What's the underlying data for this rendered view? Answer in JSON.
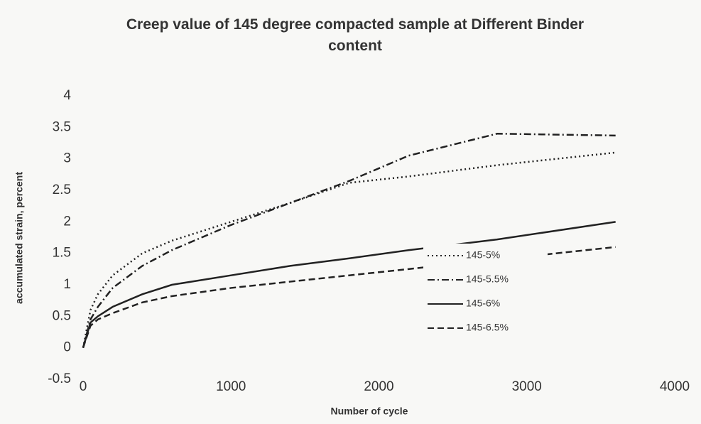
{
  "chart_data": {
    "type": "line",
    "title": "Creep value of 145 degree compacted sample at Different Binder content",
    "x_label": "Number of cycle",
    "y_label": "accumulated strain, percent",
    "x": [
      0,
      50,
      100,
      200,
      400,
      600,
      1000,
      1400,
      1800,
      2200,
      2800,
      3600
    ],
    "series": [
      {
        "name": "145-5%",
        "color": "#222222",
        "dash": "dotted",
        "values": [
          0,
          0.6,
          0.85,
          1.15,
          1.5,
          1.7,
          2.0,
          2.3,
          2.62,
          2.72,
          2.9,
          3.1
        ]
      },
      {
        "name": "145-5.5%",
        "color": "#222222",
        "dash": "dashdot",
        "values": [
          0,
          0.45,
          0.65,
          0.95,
          1.3,
          1.55,
          1.95,
          2.3,
          2.65,
          3.05,
          3.4,
          3.37
        ]
      },
      {
        "name": "145-6%",
        "color": "#222222",
        "dash": "solid",
        "values": [
          0,
          0.4,
          0.5,
          0.65,
          0.85,
          1.0,
          1.15,
          1.3,
          1.42,
          1.55,
          1.72,
          2.0
        ]
      },
      {
        "name": "145-6.5%",
        "color": "#222222",
        "dash": "dashed",
        "values": [
          0,
          0.35,
          0.45,
          0.55,
          0.72,
          0.82,
          0.95,
          1.05,
          1.15,
          1.25,
          1.4,
          1.6
        ]
      }
    ],
    "xlim": [
      0,
      4000
    ],
    "xticks": [
      0,
      1000,
      2000,
      3000,
      4000
    ],
    "ylim": [
      -0.5,
      4
    ],
    "yticks": [
      -0.5,
      0,
      0.5,
      1,
      1.5,
      2,
      2.5,
      3,
      3.5,
      4
    ],
    "grid": false,
    "legend": "lower right"
  }
}
